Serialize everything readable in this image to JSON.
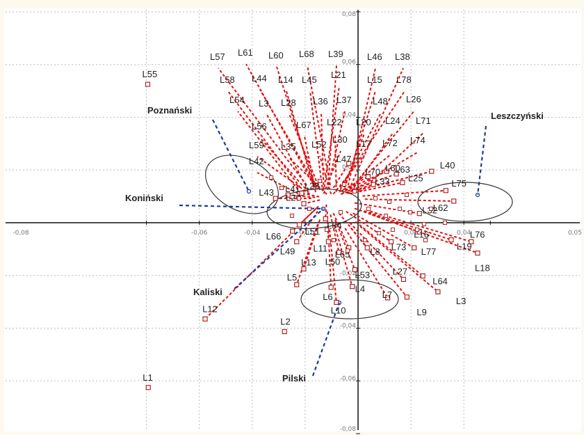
{
  "chart_data": {
    "type": "scatter",
    "title": "",
    "xlabel": "",
    "ylabel": "",
    "xlim": [
      -0.08,
      0.05
    ],
    "ylim": [
      -0.08,
      0.08
    ],
    "x_ticks": [
      "-0,08",
      "-0,06",
      "-0,04",
      "-0,02",
      "0,02",
      "0,04",
      "0,05"
    ],
    "y_ticks": [
      "0,08",
      "0,06",
      "0,04",
      "0,02",
      "-0,02",
      "-0,04",
      "-0,06",
      "-0,08"
    ],
    "grid": true,
    "colors": {
      "points": "#b22222",
      "vectors": "#e01010",
      "regions": "#1a3a9a",
      "ellipse": "#333333",
      "grid": "#bbbbbb",
      "axis": "#111111"
    },
    "points": [
      {
        "label": "L55",
        "x": -0.0795,
        "y": 0.0525
      },
      {
        "label": "L12",
        "x": -0.0578,
        "y": -0.0365
      },
      {
        "label": "L1",
        "x": -0.0793,
        "y": -0.0625
      },
      {
        "label": "L2",
        "x": -0.0278,
        "y": -0.0413
      },
      {
        "label": "L66",
        "x": -0.0248,
        "y": -0.0032
      },
      {
        "label": "L43",
        "x": -0.0312,
        "y": 0.0092
      },
      {
        "label": "L41",
        "x": -0.0265,
        "y": 0.0105
      },
      {
        "label": "L28",
        "x": -0.0213,
        "y": 0.0112
      },
      {
        "label": "L29",
        "x": -0.0205,
        "y": 0.0072
      },
      {
        "label": "L51",
        "x": -0.0222,
        "y": -0.0008
      },
      {
        "label": "L34",
        "x": -0.0123,
        "y": 0.0015
      },
      {
        "label": "L49",
        "x": -0.0232,
        "y": -0.0072
      },
      {
        "label": "L11",
        "x": -0.0112,
        "y": -0.0072
      },
      {
        "label": "L13",
        "x": -0.0205,
        "y": -0.0175
      },
      {
        "label": "L5",
        "x": -0.0232,
        "y": -0.0235
      },
      {
        "label": "L50",
        "x": -0.0072,
        "y": -0.0112
      },
      {
        "label": "L65",
        "x": -0.0035,
        "y": -0.0095
      },
      {
        "label": "L6",
        "x": -0.0102,
        "y": -0.0245
      },
      {
        "label": "L10",
        "x": -0.0082,
        "y": -0.0302
      },
      {
        "label": "L4",
        "x": -0.0022,
        "y": -0.0242
      },
      {
        "label": "L53",
        "x": -0.0012,
        "y": -0.0178
      },
      {
        "label": "L8",
        "x": 0.0035,
        "y": -0.0095
      },
      {
        "label": "L7",
        "x": 0.0112,
        "y": -0.0285
      },
      {
        "label": "L9",
        "x": 0.0185,
        "y": -0.0282
      },
      {
        "label": "L27",
        "x": 0.0172,
        "y": -0.0215
      },
      {
        "label": "L73",
        "x": 0.0125,
        "y": -0.0072
      },
      {
        "label": "L77",
        "x": 0.0212,
        "y": -0.0095
      },
      {
        "label": "L64",
        "x": 0.0245,
        "y": -0.0202
      },
      {
        "label": "L3",
        "x": 0.0302,
        "y": -0.0262
      },
      {
        "label": "L18",
        "x": 0.0452,
        "y": -0.0115
      },
      {
        "label": "L76",
        "x": 0.0428,
        "y": -0.0072
      },
      {
        "label": "L19",
        "x": 0.0352,
        "y": -0.0065
      },
      {
        "label": "L16",
        "x": 0.0232,
        "y": -0.0035
      },
      {
        "label": "L32",
        "x": 0.0232,
        "y": 0.0035
      },
      {
        "label": "L62",
        "x": 0.0362,
        "y": 0.0082
      },
      {
        "label": "L75",
        "x": 0.0332,
        "y": 0.0122
      },
      {
        "label": "L40",
        "x": 0.0278,
        "y": 0.0195
      },
      {
        "label": "L25",
        "x": 0.0168,
        "y": 0.0152
      },
      {
        "label": "L63",
        "x": 0.0145,
        "y": 0.0185
      },
      {
        "label": "L60",
        "x": 0.0108,
        "y": 0.0195
      },
      {
        "label": "L33",
        "x": 0.0058,
        "y": 0.0145
      },
      {
        "label": "L70",
        "x": 0.0038,
        "y": 0.0175
      },
      {
        "label": "L47",
        "x": -0.0035,
        "y": 0.0225
      }
    ],
    "vector_labels": [
      "L57",
      "L61",
      "L60",
      "L68",
      "L39",
      "L46",
      "L38",
      "L58",
      "L44",
      "L14",
      "L45",
      "L21",
      "L15",
      "L78",
      "L54",
      "L3",
      "L28",
      "L36",
      "L37",
      "L48",
      "L26",
      "L56",
      "L67",
      "L22",
      "L20",
      "L24",
      "L71",
      "L59",
      "L35",
      "L52",
      "L30",
      "L17",
      "L72",
      "L74",
      "L42"
    ],
    "regions": [
      {
        "name": "Poznański"
      },
      {
        "name": "Koniński"
      },
      {
        "name": "Kaliski"
      },
      {
        "name": "Pilski"
      },
      {
        "name": "Leszczyński"
      }
    ]
  }
}
